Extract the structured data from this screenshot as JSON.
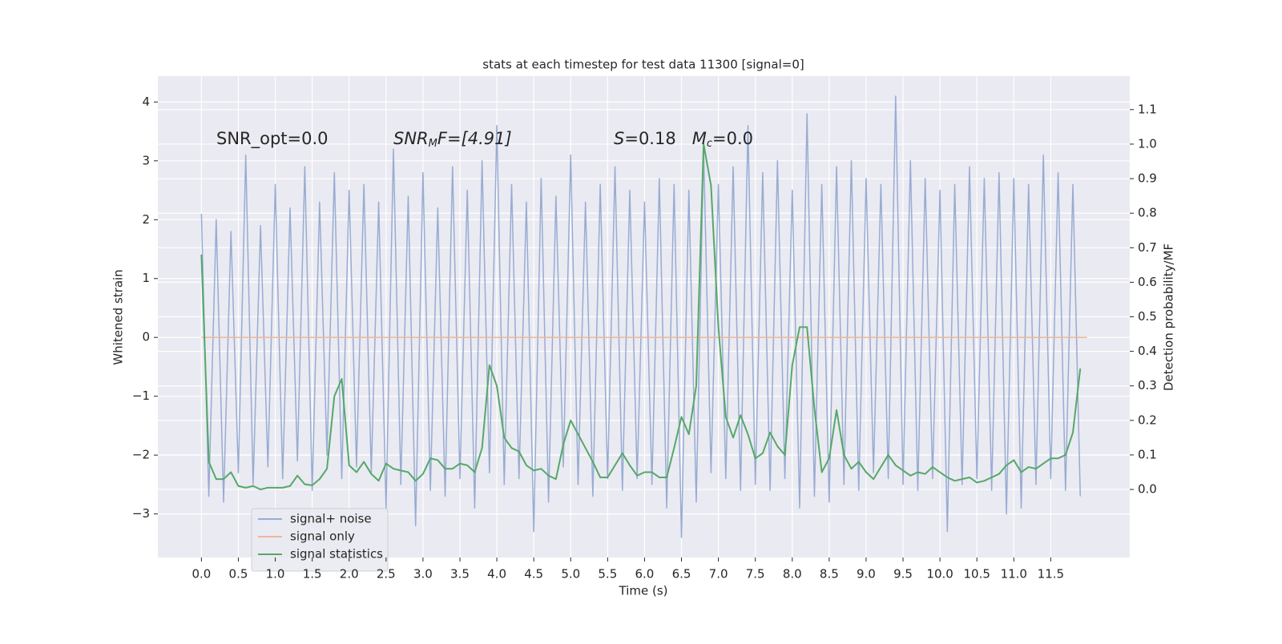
{
  "chart_data": {
    "type": "line",
    "title": "stats at each timestep for test data 11300 [signal=0]",
    "xlabel": "Time (s)",
    "ylabel": "Whitened strain",
    "y2label": "Detection probability/MF",
    "annotations": [
      [
        "SNR_opt=0.0"
      ],
      [
        "SNR",
        "M",
        "F=[4.91]"
      ],
      [
        "S",
        "=0.18   ",
        "M",
        "c",
        "=0.0"
      ]
    ],
    "xlim": [
      -0.59,
      12.57
    ],
    "xticks": [
      {
        "value": 0,
        "label": "0.0"
      },
      0.5,
      {
        "value": 1,
        "label": "1.0"
      },
      1.5,
      {
        "value": 2,
        "label": "2.0"
      },
      2.5,
      {
        "value": 3,
        "label": "3.0"
      },
      3.5,
      {
        "value": 4,
        "label": "4.0"
      },
      4.5,
      {
        "value": 5,
        "label": "5.0"
      },
      5.5,
      {
        "value": 6,
        "label": "6.0"
      },
      6.5,
      {
        "value": 7,
        "label": "7.0"
      },
      7.5,
      {
        "value": 8,
        "label": "8.0"
      },
      8.5,
      {
        "value": 9,
        "label": "9.0"
      },
      9.5,
      {
        "value": 10,
        "label": "10.0"
      },
      10.5,
      {
        "value": 11,
        "label": "11.0"
      },
      11.5
    ],
    "ylim": [
      -3.74,
      4.44
    ],
    "yticks": [
      {
        "value": -3,
        "label": "−3"
      },
      {
        "value": -2,
        "label": "−2"
      },
      {
        "value": -1,
        "label": "−1"
      },
      0,
      1,
      2,
      3,
      4
    ],
    "y2lim": [
      -0.197,
      1.197
    ],
    "y2ticks": [
      {
        "value": 0,
        "label": "0.0"
      },
      0.1,
      0.2,
      0.3,
      0.4,
      0.5,
      0.6,
      0.7,
      0.8,
      0.9,
      {
        "value": 1,
        "label": "1.0"
      },
      1.1
    ],
    "grid": true,
    "legend": "lower left",
    "series": [
      {
        "name": "signal+ noise",
        "color": "#98acd2",
        "x": [
          0,
          0.1,
          0.2,
          0.3,
          0.4,
          0.5,
          0.6,
          0.7,
          0.8,
          0.9,
          1,
          1.1,
          1.2,
          1.3,
          1.4,
          1.5,
          1.6,
          1.7,
          1.8,
          1.9,
          2,
          2.1,
          2.2,
          2.3,
          2.4,
          2.5,
          2.6,
          2.7,
          2.8,
          2.9,
          3,
          3.1,
          3.2,
          3.3,
          3.4,
          3.5,
          3.6,
          3.7,
          3.8,
          3.9,
          4,
          4.1,
          4.2,
          4.3,
          4.4,
          4.5,
          4.6,
          4.7,
          4.8,
          4.9,
          5,
          5.1,
          5.2,
          5.3,
          5.4,
          5.5,
          5.6,
          5.7,
          5.8,
          5.9,
          6,
          6.1,
          6.2,
          6.3,
          6.4,
          6.5,
          6.6,
          6.7,
          6.8,
          6.9,
          7,
          7.1,
          7.2,
          7.3,
          7.4,
          7.5,
          7.6,
          7.7,
          7.8,
          7.9,
          8,
          8.1,
          8.2,
          8.3,
          8.4,
          8.5,
          8.6,
          8.7,
          8.8,
          8.9,
          9,
          9.1,
          9.2,
          9.3,
          9.4,
          9.5,
          9.6,
          9.7,
          9.8,
          9.9,
          10,
          10.1,
          10.2,
          10.3,
          10.4,
          10.5,
          10.6,
          10.7,
          10.8,
          10.9,
          11,
          11.1,
          11.2,
          11.3,
          11.4,
          11.5,
          11.6,
          11.7,
          11.8,
          11.9
        ],
        "values": [
          2.1,
          -2.7,
          2.0,
          -2.8,
          1.8,
          -2.3,
          3.1,
          -2.5,
          1.9,
          -2.2,
          2.6,
          -2.4,
          2.2,
          -2.1,
          2.9,
          -2.6,
          2.3,
          -2.0,
          2.8,
          -2.4,
          2.5,
          -2.2,
          2.6,
          -2.3,
          2.3,
          -2.9,
          3.2,
          -2.5,
          2.4,
          -3.2,
          2.8,
          -2.6,
          2.2,
          -2.7,
          2.9,
          -2.4,
          2.5,
          -2.9,
          3.0,
          -2.3,
          3.6,
          -2.5,
          2.6,
          -2.4,
          2.3,
          -3.3,
          2.7,
          -2.8,
          2.4,
          -2.2,
          3.1,
          -2.5,
          2.3,
          -2.7,
          2.6,
          -2.4,
          2.9,
          -2.6,
          2.5,
          -2.4,
          2.3,
          -2.5,
          2.7,
          -2.9,
          2.6,
          -3.4,
          2.5,
          -2.8,
          3.2,
          -2.3,
          2.6,
          -2.4,
          2.9,
          -2.6,
          3.6,
          -2.5,
          2.8,
          -2.6,
          3.0,
          -2.4,
          2.5,
          -2.9,
          3.8,
          -2.7,
          2.6,
          -2.8,
          2.9,
          -2.5,
          3.0,
          -2.6,
          2.7,
          -2.3,
          2.6,
          -2.4,
          4.1,
          -2.5,
          3.0,
          -2.6,
          2.7,
          -2.4,
          2.5,
          -3.3,
          2.6,
          -2.5,
          2.9,
          -2.4,
          2.7,
          -2.6,
          2.8,
          -3.0,
          2.7,
          -2.9,
          2.6,
          -2.5,
          3.1,
          -2.4,
          2.8,
          -2.6,
          2.6,
          -2.7
        ]
      },
      {
        "name": "signal only",
        "color": "#eeb79a",
        "x": [
          0,
          11.99
        ],
        "values": [
          0,
          0
        ]
      },
      {
        "name": "signal statistics",
        "color": "#55a868",
        "axis": "y2",
        "x": [
          0,
          0.1,
          0.2,
          0.3,
          0.4,
          0.5,
          0.6,
          0.7,
          0.8,
          0.9,
          1,
          1.1,
          1.2,
          1.3,
          1.4,
          1.5,
          1.6,
          1.7,
          1.8,
          1.9,
          2,
          2.1,
          2.2,
          2.3,
          2.4,
          2.5,
          2.6,
          2.7,
          2.8,
          2.9,
          3,
          3.1,
          3.2,
          3.3,
          3.4,
          3.5,
          3.6,
          3.7,
          3.8,
          3.9,
          4,
          4.1,
          4.2,
          4.3,
          4.4,
          4.5,
          4.6,
          4.7,
          4.8,
          4.9,
          5,
          5.1,
          5.2,
          5.3,
          5.4,
          5.5,
          5.6,
          5.7,
          5.8,
          5.9,
          6,
          6.1,
          6.2,
          6.3,
          6.4,
          6.5,
          6.6,
          6.7,
          6.8,
          6.9,
          7,
          7.1,
          7.2,
          7.3,
          7.4,
          7.5,
          7.6,
          7.7,
          7.8,
          7.9,
          8,
          8.1,
          8.2,
          8.3,
          8.4,
          8.5,
          8.6,
          8.7,
          8.8,
          8.9,
          9,
          9.1,
          9.2,
          9.3,
          9.4,
          9.5,
          9.6,
          9.7,
          9.8,
          9.9,
          10,
          10.1,
          10.2,
          10.3,
          10.4,
          10.5,
          10.6,
          10.7,
          10.8,
          10.9,
          11,
          11.1,
          11.2,
          11.3,
          11.4,
          11.5,
          11.6,
          11.7,
          11.8,
          11.9
        ],
        "values": [
          0.68,
          0.08,
          0.03,
          0.03,
          0.05,
          0.01,
          0.005,
          0.01,
          0,
          0.005,
          0.005,
          0.005,
          0.01,
          0.04,
          0.015,
          0.012,
          0.03,
          0.06,
          0.27,
          0.32,
          0.07,
          0.05,
          0.08,
          0.045,
          0.025,
          0.075,
          0.06,
          0.055,
          0.05,
          0.025,
          0.045,
          0.09,
          0.085,
          0.06,
          0.06,
          0.075,
          0.07,
          0.05,
          0.12,
          0.36,
          0.3,
          0.15,
          0.12,
          0.11,
          0.07,
          0.055,
          0.06,
          0.04,
          0.03,
          0.13,
          0.2,
          0.16,
          0.12,
          0.08,
          0.035,
          0.035,
          0.07,
          0.105,
          0.07,
          0.04,
          0.05,
          0.05,
          0.035,
          0.035,
          0.12,
          0.21,
          0.16,
          0.3,
          1.0,
          0.88,
          0.47,
          0.21,
          0.15,
          0.215,
          0.16,
          0.09,
          0.105,
          0.165,
          0.125,
          0.1,
          0.36,
          0.47,
          0.47,
          0.235,
          0.05,
          0.09,
          0.23,
          0.1,
          0.06,
          0.08,
          0.05,
          0.03,
          0.065,
          0.1,
          0.07,
          0.055,
          0.04,
          0.05,
          0.045,
          0.065,
          0.05,
          0.035,
          0.025,
          0.03,
          0.035,
          0.02,
          0.025,
          0.035,
          0.045,
          0.07,
          0.085,
          0.05,
          0.065,
          0.06,
          0.075,
          0.09,
          0.09,
          0.1,
          0.165,
          0.35
        ]
      }
    ]
  }
}
